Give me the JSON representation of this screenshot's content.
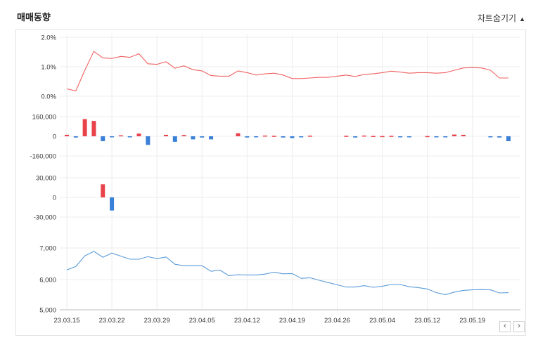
{
  "header": {
    "title": "매매동향",
    "toggle_label": "차트숨기기",
    "toggle_icon": "triangle-up-icon"
  },
  "nav": {
    "prev_label": "‹",
    "next_label": "›"
  },
  "colors": {
    "red": "#e8434b",
    "blue": "#3a80d6",
    "line_red": "#f06060",
    "line_blue": "#5a9bd8",
    "grid": "#ececec"
  },
  "chart_data": [
    {
      "type": "line",
      "y_ticks": [
        "2.0%",
        "1.0%",
        "0.0%"
      ],
      "ylim": [
        0,
        2.0
      ],
      "series": [
        {
          "values": [
            0.25,
            0.18,
            0.88,
            1.52,
            1.3,
            1.28,
            1.35,
            1.32,
            1.44,
            1.1,
            1.08,
            1.17,
            0.95,
            1.03,
            0.9,
            0.86,
            0.7,
            0.68,
            0.68,
            0.86,
            0.8,
            0.72,
            0.76,
            0.78,
            0.72,
            0.6,
            0.6,
            0.62,
            0.64,
            0.64,
            0.68,
            0.72,
            0.67,
            0.74,
            0.76,
            0.8,
            0.85,
            0.82,
            0.78,
            0.8,
            0.8,
            0.78,
            0.8,
            0.88,
            0.96,
            0.97,
            0.96,
            0.88,
            0.62,
            0.62
          ]
        }
      ]
    },
    {
      "type": "bar",
      "y_ticks": [
        "160,000",
        "0",
        "-160,000"
      ],
      "ylim": [
        -160000,
        160000
      ],
      "series": [
        {
          "values": [
            12000,
            -10000,
            140000,
            125000,
            -40000,
            -8000,
            8000,
            -5000,
            22000,
            -70000,
            0,
            12000,
            -45000,
            10000,
            -25000,
            -10000,
            -25000,
            0,
            0,
            25000,
            -10000,
            -8000,
            6000,
            4000,
            -10000,
            -15000,
            -3000,
            5000,
            0,
            0,
            0,
            4000,
            -10000,
            6000,
            3000,
            2000,
            4000,
            -3000,
            -3000,
            0,
            2000,
            -3000,
            -3000,
            14000,
            12000,
            0,
            0,
            -4000,
            -10000,
            -40000
          ]
        }
      ]
    },
    {
      "type": "bar",
      "y_ticks": [
        "30,000",
        "0",
        "-30,000"
      ],
      "ylim": [
        -30000,
        30000
      ],
      "series": [
        {
          "values": [
            0,
            0,
            0,
            0,
            20000,
            0,
            0,
            0,
            0,
            0,
            0,
            0,
            0,
            0,
            0,
            0,
            0,
            0,
            0,
            0,
            0,
            0,
            0,
            0,
            0,
            0,
            0,
            0,
            0,
            0,
            0,
            0,
            0,
            0,
            0,
            0,
            0,
            0,
            0,
            0,
            0,
            0,
            0,
            0,
            0,
            0,
            0,
            0,
            0,
            0
          ]
        },
        {
          "values": [
            0,
            0,
            0,
            0,
            0,
            -20000,
            0,
            0,
            0,
            0,
            0,
            0,
            0,
            0,
            0,
            0,
            0,
            0,
            0,
            0,
            0,
            0,
            0,
            0,
            0,
            0,
            0,
            0,
            0,
            0,
            0,
            0,
            0,
            0,
            0,
            0,
            0,
            0,
            0,
            0,
            0,
            0,
            0,
            0,
            0,
            0,
            0,
            0,
            0,
            0
          ]
        }
      ]
    },
    {
      "type": "line",
      "y_ticks": [
        "7,000",
        "6,000",
        "5,000"
      ],
      "ylim": [
        5000,
        7200
      ],
      "x_tick_labels": [
        "23.03.15",
        "23.03.22",
        "23.03.29",
        "23.04.05",
        "23.04.12",
        "23.04.19",
        "23.04.26",
        "23.05.04",
        "23.05.12",
        "23.05.19"
      ],
      "series": [
        {
          "values": [
            6420,
            6540,
            6920,
            7080,
            6870,
            7020,
            6910,
            6800,
            6800,
            6890,
            6820,
            6880,
            6620,
            6570,
            6570,
            6570,
            6370,
            6410,
            6210,
            6250,
            6240,
            6240,
            6270,
            6340,
            6280,
            6290,
            6120,
            6140,
            6050,
            5970,
            5890,
            5810,
            5810,
            5860,
            5800,
            5840,
            5900,
            5900,
            5820,
            5790,
            5740,
            5610,
            5540,
            5630,
            5690,
            5710,
            5720,
            5710,
            5600,
            5610
          ]
        }
      ]
    }
  ]
}
